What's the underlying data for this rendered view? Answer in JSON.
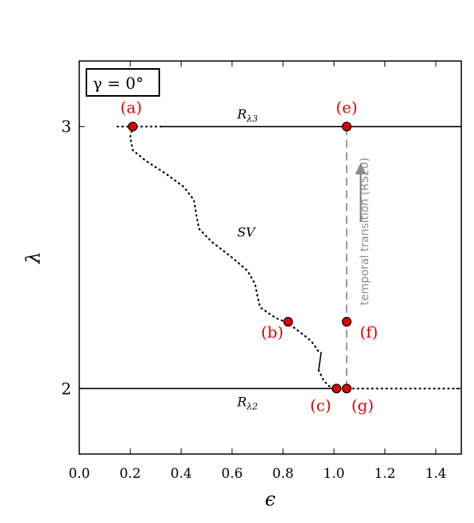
{
  "chart_data": {
    "type": "line",
    "xlabel": "ϵ",
    "ylabel": "λ",
    "xlim": [
      0.0,
      1.5
    ],
    "ylim": [
      1.75,
      3.25
    ],
    "x_ticks": [
      "0.0",
      "0.2",
      "0.4",
      "0.6",
      "0.8",
      "1.0",
      "1.2",
      "1.4"
    ],
    "y_ticks": [
      "2",
      "3"
    ],
    "legend_box": "γ = 0°",
    "series": [
      {
        "name": "R",
        "subscript": "λ3",
        "segments": [
          {
            "style": "dotted",
            "x": [
              0.15,
              0.32
            ],
            "y": [
              3.0,
              3.0
            ]
          },
          {
            "style": "solid",
            "x": [
              0.32,
              1.5
            ],
            "y": [
              3.0,
              3.0
            ]
          }
        ]
      },
      {
        "name": "R",
        "subscript": "λ2",
        "segments": [
          {
            "style": "solid",
            "x": [
              0.0,
              1.0
            ],
            "y": [
              2.0,
              2.0
            ]
          },
          {
            "style": "dotted",
            "x": [
              1.0,
              1.5
            ],
            "y": [
              2.0,
              2.0
            ]
          }
        ]
      },
      {
        "name": "SV",
        "segments": [
          {
            "style": "dotted",
            "x": [
              0.21,
              0.2,
              0.21,
              0.26,
              0.34,
              0.41,
              0.45,
              0.46,
              0.47,
              0.52,
              0.6,
              0.66,
              0.69,
              0.7,
              0.71,
              0.77,
              0.82,
              0.86,
              0.9,
              0.92,
              0.94
            ],
            "y": [
              3.0,
              2.96,
              2.91,
              2.87,
              2.82,
              2.77,
              2.72,
              2.66,
              2.61,
              2.56,
              2.5,
              2.45,
              2.4,
              2.35,
              2.31,
              2.27,
              2.25,
              2.22,
              2.19,
              2.17,
              2.14
            ]
          },
          {
            "style": "solid",
            "x": [
              0.95,
              0.94
            ],
            "y": [
              2.14,
              2.07
            ]
          },
          {
            "style": "dotted",
            "x": [
              0.94,
              0.96,
              0.98,
              1.0
            ],
            "y": [
              2.07,
              2.03,
              2.01,
              2.0
            ]
          }
        ]
      }
    ],
    "points": [
      {
        "label": "(a)",
        "x": 0.21,
        "y": 3.0
      },
      {
        "label": "(b)",
        "x": 0.82,
        "y": 2.255
      },
      {
        "label": "(c)",
        "x": 1.01,
        "y": 2.0
      },
      {
        "label": "(e)",
        "x": 1.05,
        "y": 3.0
      },
      {
        "label": "(f)",
        "x": 1.05,
        "y": 2.255
      },
      {
        "label": "(g)",
        "x": 1.05,
        "y": 2.0
      }
    ],
    "transition_line": {
      "x": 1.05,
      "y": [
        2.0,
        3.0
      ]
    },
    "annotation": "temporal transition (RS20)",
    "colors": {
      "points": "#e00000",
      "point_edge": "#000000",
      "annotation": "#8a8a8a"
    }
  }
}
